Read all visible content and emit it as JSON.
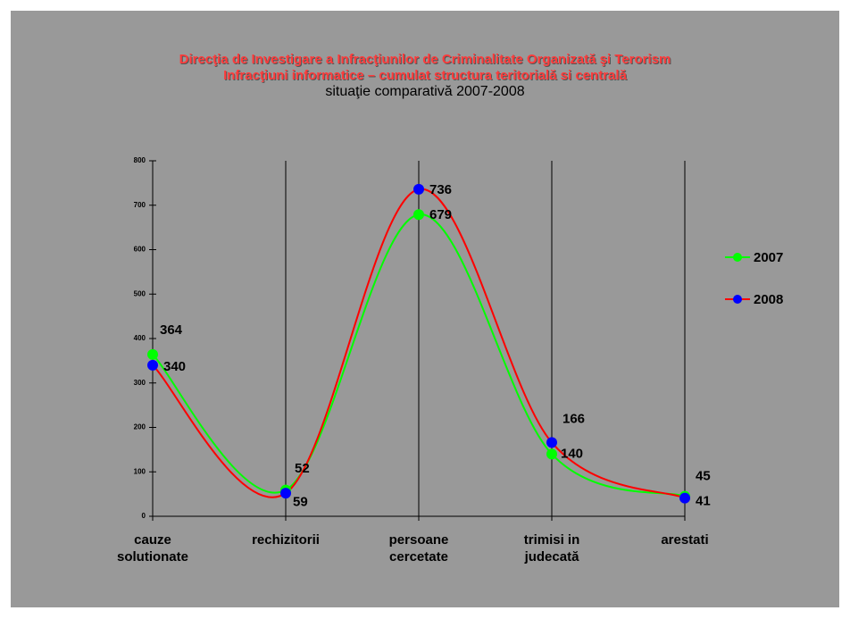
{
  "chart_data": {
    "type": "line",
    "title": "Direcţia de Investigare a Infracţiunilor de Criminalitate Organizată şi Terorism",
    "subtitle": "Infracţiuni informatice – cumulat structura teritorială si centrală",
    "note": "situaţie comparativă 2007-2008",
    "categories": [
      "cauze solutionate",
      "rechizitorii",
      "persoane cercetate",
      "trimisi in judecată",
      "arestati"
    ],
    "series": [
      {
        "name": "2007",
        "color": "#00ff00",
        "marker_color": "#00ff00",
        "values": [
          364,
          59,
          679,
          140,
          45
        ]
      },
      {
        "name": "2008",
        "color": "#ff0000",
        "marker_color": "#0000ff",
        "values": [
          340,
          52,
          736,
          166,
          41
        ]
      }
    ],
    "ylim": [
      0,
      800
    ],
    "yticks": [
      0,
      100,
      200,
      300,
      400,
      500,
      600,
      700,
      800
    ],
    "smooth": true,
    "grid_x": true,
    "legend": "right"
  }
}
